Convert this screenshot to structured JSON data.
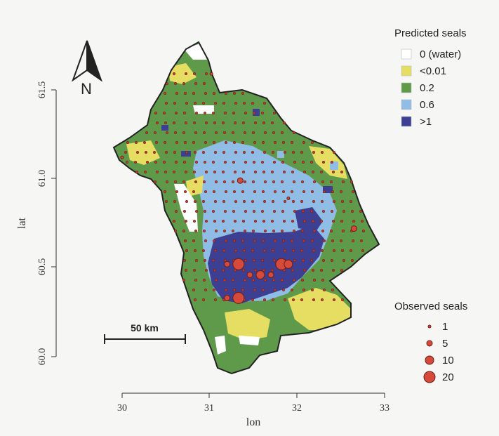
{
  "map": {
    "xlabel": "lon",
    "ylabel": "lat",
    "x_ticks": [
      "30",
      "31",
      "32",
      "33"
    ],
    "y_ticks": [
      "60.0",
      "60.5",
      "61.0",
      "61.5"
    ],
    "xlim": [
      30,
      33
    ],
    "ylim": [
      60,
      61.5
    ],
    "north_label": "N",
    "scale_bar": "50 km"
  },
  "legend_predicted": {
    "title": "Predicted seals",
    "items": [
      {
        "label": "0 (water)",
        "color": "#ffffff"
      },
      {
        "label": "<0.01",
        "color": "#e6de63"
      },
      {
        "label": "0.2",
        "color": "#5f9a4b"
      },
      {
        "label": "0.6",
        "color": "#8fbde6"
      },
      {
        "label": ">1",
        "color": "#3d3f93"
      }
    ]
  },
  "legend_observed": {
    "title": "Observed seals",
    "items": [
      {
        "label": "1"
      },
      {
        "label": "5"
      },
      {
        "label": "10"
      },
      {
        "label": "20"
      }
    ]
  },
  "observations": [
    {
      "lon": 31.33,
      "lat": 60.52,
      "count": 20
    },
    {
      "lon": 31.58,
      "lat": 60.46,
      "count": 10
    },
    {
      "lon": 31.82,
      "lat": 60.52,
      "count": 20
    },
    {
      "lon": 31.9,
      "lat": 60.52,
      "count": 10
    },
    {
      "lon": 31.33,
      "lat": 60.33,
      "count": 20
    },
    {
      "lon": 31.2,
      "lat": 60.33,
      "count": 5
    },
    {
      "lon": 31.46,
      "lat": 60.46,
      "count": 5
    },
    {
      "lon": 31.7,
      "lat": 60.46,
      "count": 5
    },
    {
      "lon": 31.2,
      "lat": 60.52,
      "count": 5
    },
    {
      "lon": 32.65,
      "lat": 60.72,
      "count": 5
    },
    {
      "lon": 31.35,
      "lat": 60.99,
      "count": 5
    },
    {
      "lon": 31.02,
      "lat": 61.59,
      "count": 1
    },
    {
      "lon": 31.9,
      "lat": 60.89,
      "count": 1
    },
    {
      "lon": 30.0,
      "lat": 61.12,
      "count": 1
    }
  ]
}
